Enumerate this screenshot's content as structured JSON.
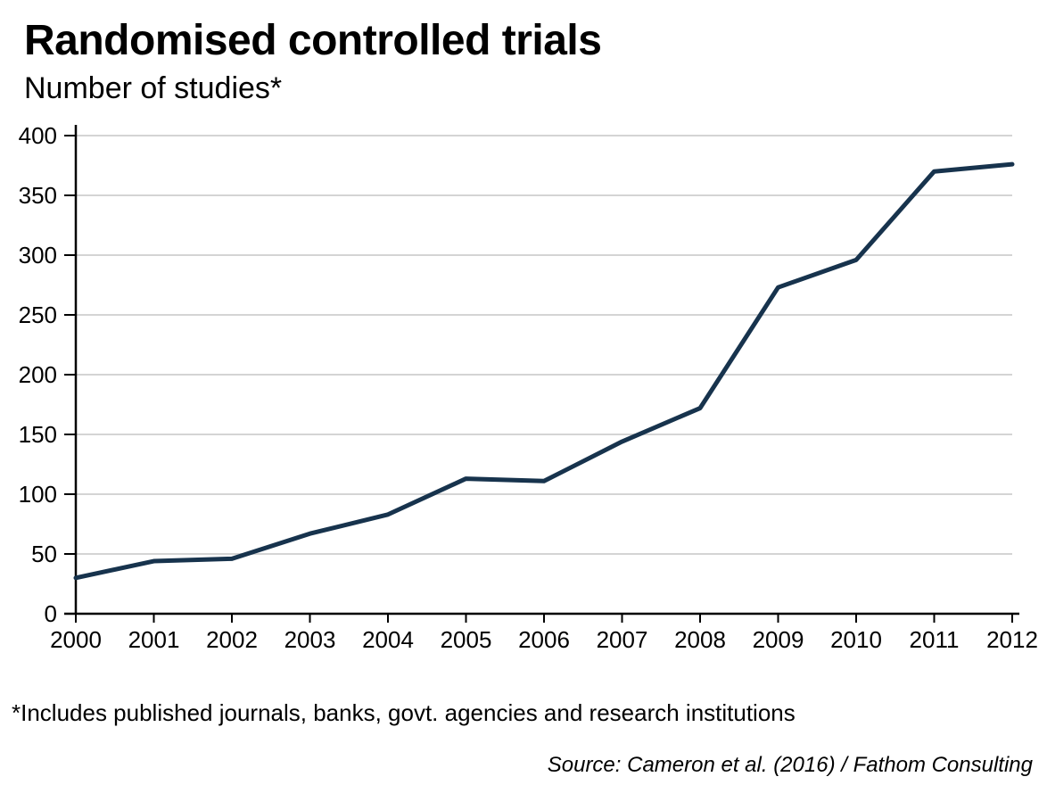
{
  "header": {
    "title": "Randomised controlled trials",
    "subtitle": "Number of studies*"
  },
  "footer": {
    "footnote": "*Includes published journals, banks, govt. agencies and research institutions",
    "source": "Source: Cameron et al. (2016) / Fathom Consulting"
  },
  "chart_data": {
    "type": "line",
    "title": "Randomised controlled trials",
    "subtitle": "Number of studies*",
    "x": [
      2000,
      2001,
      2002,
      2003,
      2004,
      2005,
      2006,
      2007,
      2008,
      2009,
      2010,
      2011,
      2012
    ],
    "series": [
      {
        "name": "Randomised controlled trials",
        "values": [
          30,
          44,
          46,
          67,
          83,
          113,
          111,
          144,
          172,
          273,
          296,
          370,
          376
        ]
      }
    ],
    "xlabel": "",
    "ylabel": "Number of studies*",
    "ylim": [
      0,
      400
    ],
    "yticks": [
      0,
      50,
      100,
      150,
      200,
      250,
      300,
      350,
      400
    ],
    "xticks": [
      2000,
      2001,
      2002,
      2003,
      2004,
      2005,
      2006,
      2007,
      2008,
      2009,
      2010,
      2011,
      2012
    ],
    "grid": "horizontal",
    "legend": "none",
    "colors": {
      "line": "#17334d",
      "gridline": "#d4d4d4",
      "axis": "#000000",
      "tick_label": "#000000"
    }
  }
}
